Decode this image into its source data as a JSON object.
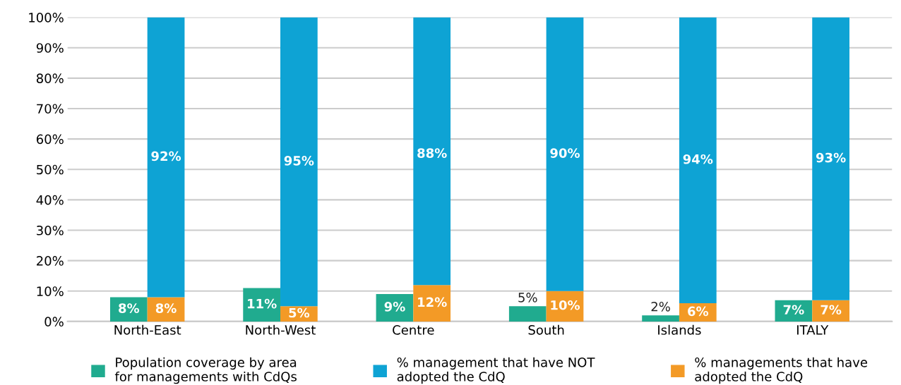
{
  "chart_data": [
    {
      "type": "bar",
      "categories": [
        "North-East",
        "North-West",
        "Centre",
        "South",
        "Islands",
        "ITALY"
      ],
      "series": [
        {
          "name": "Population coverage by area for managements with CdQs",
          "color": "#20ab8f",
          "values": [
            8,
            11,
            9,
            5,
            2,
            7
          ],
          "value_labels": [
            "8%",
            "11%",
            "9%",
            "5%",
            "2%",
            "7%"
          ]
        }
      ],
      "ylim": [
        0,
        100
      ],
      "yticks": [
        {
          "value": 0,
          "label": "0%"
        },
        {
          "value": 10,
          "label": "10%"
        },
        {
          "value": 20,
          "label": "20%"
        },
        {
          "value": 30,
          "label": "30%"
        },
        {
          "value": 40,
          "label": "40%"
        },
        {
          "value": 50,
          "label": "50%"
        },
        {
          "value": 60,
          "label": "60%"
        },
        {
          "value": 70,
          "label": "70%"
        },
        {
          "value": 80,
          "label": "80%"
        },
        {
          "value": 90,
          "label": "90%"
        },
        {
          "value": 100,
          "label": "100%"
        }
      ],
      "grid": "y",
      "legend": "bottom"
    },
    {
      "type": "bar",
      "stacked": true,
      "categories": [
        "North-East",
        "North-West",
        "Centre",
        "South",
        "Islands",
        "ITALY"
      ],
      "series": [
        {
          "name": "% managements that have adopted the CdQ",
          "color": "#f39a26",
          "values": [
            8,
            5,
            12,
            10,
            6,
            7
          ],
          "value_labels": [
            "8%",
            "5%",
            "12%",
            "10%",
            "6%",
            "7%"
          ]
        },
        {
          "name": "% management that have NOT adopted the CdQ",
          "color": "#0ea3d4",
          "values": [
            92,
            95,
            88,
            90,
            94,
            93
          ],
          "value_labels": [
            "92%",
            "95%",
            "88%",
            "90%",
            "94%",
            "93%"
          ]
        }
      ],
      "ylim": [
        0,
        100
      ],
      "tick_labels": false,
      "legend": "bottom"
    }
  ]
}
